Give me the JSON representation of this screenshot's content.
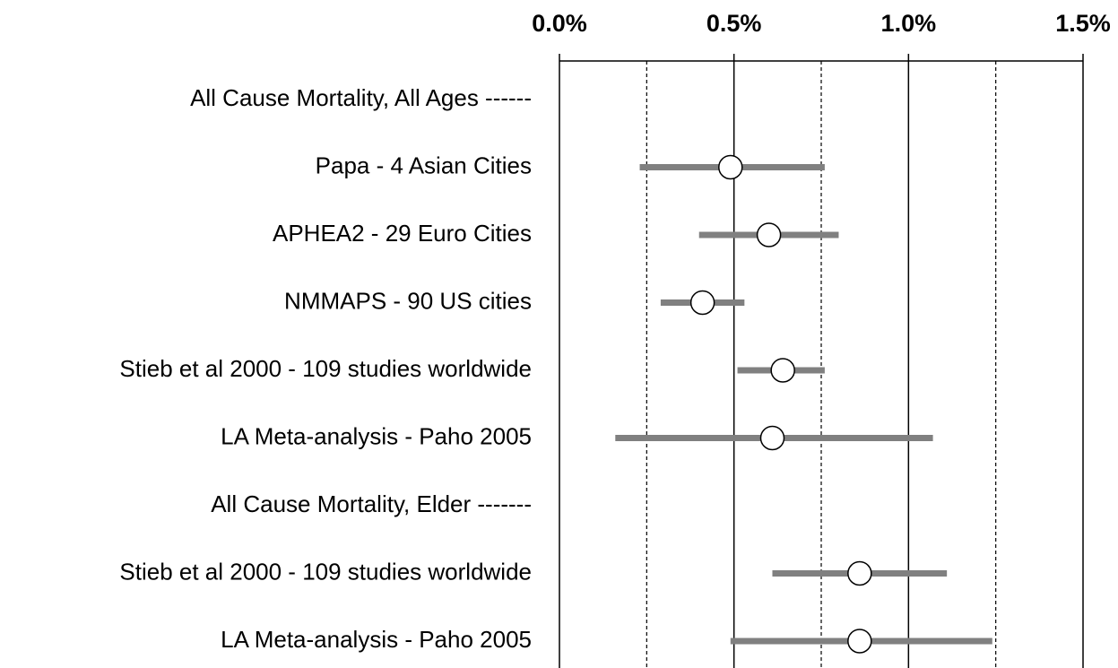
{
  "chart_data": {
    "type": "forest",
    "categories": [
      "All Cause Mortality, All Ages ------",
      "Papa - 4 Asian Cities",
      "APHEA2 - 29 Euro Cities",
      "NMMAPS - 90 US cities",
      "Stieb et al 2000 - 109 studies worldwide",
      "LA Meta-analysis - Paho 2005",
      "All Cause Mortality, Elder -------",
      "Stieb et al 2000 - 109 studies worldwide",
      "LA Meta-analysis - Paho 2005"
    ],
    "values": [
      null,
      0.49,
      0.6,
      0.41,
      0.64,
      0.61,
      null,
      0.86,
      0.86
    ],
    "lower": [
      null,
      0.23,
      0.4,
      0.29,
      0.51,
      0.16,
      null,
      0.61,
      0.49
    ],
    "upper": [
      null,
      0.76,
      0.8,
      0.53,
      0.76,
      1.07,
      null,
      1.11,
      1.24
    ],
    "xlim": [
      0,
      1.5
    ],
    "xticks": [
      {
        "value": 0,
        "label": "0.0%"
      },
      {
        "value": 0.5,
        "label": "0.5%"
      },
      {
        "value": 1.0,
        "label": "1.0%"
      },
      {
        "value": 1.5,
        "label": "1.5%"
      }
    ],
    "xminor": [
      0.25,
      0.75,
      1.25
    ],
    "bar_color": "#808080",
    "marker_color": "#ffffff"
  }
}
